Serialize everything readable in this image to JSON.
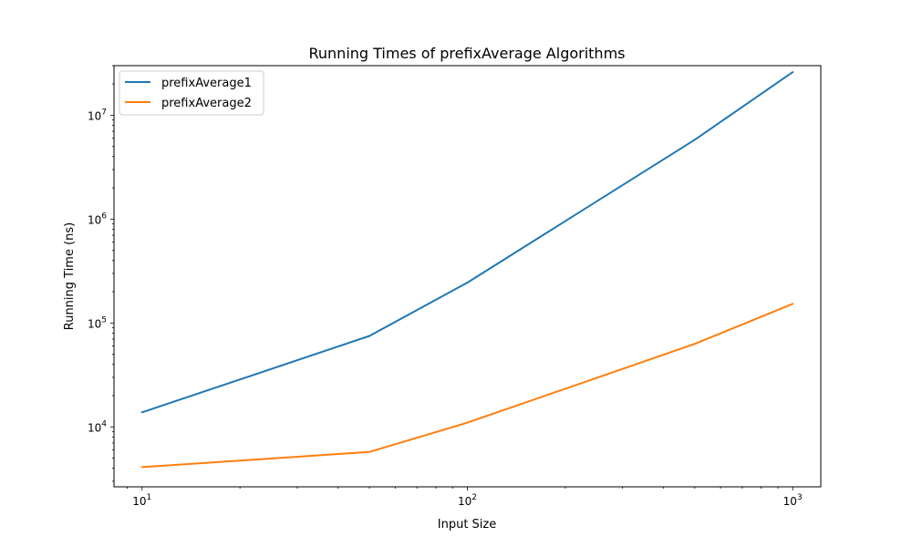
{
  "chart_data": {
    "type": "line",
    "title": "Running Times of prefixAverage Algorithms",
    "xlabel": "Input Size",
    "ylabel": "Running Time (ns)",
    "xscale": "log",
    "yscale": "log",
    "xlim": [
      8.2,
      1220
    ],
    "ylim": [
      2650,
      30000000
    ],
    "xticks": [
      {
        "value": 10,
        "base": "10",
        "exp": "1"
      },
      {
        "value": 100,
        "base": "10",
        "exp": "2"
      },
      {
        "value": 1000,
        "base": "10",
        "exp": "3"
      }
    ],
    "yticks": [
      {
        "value": 10000,
        "base": "10",
        "exp": "4"
      },
      {
        "value": 100000,
        "base": "10",
        "exp": "5"
      },
      {
        "value": 1000000,
        "base": "10",
        "exp": "6"
      },
      {
        "value": 10000000,
        "base": "10",
        "exp": "7"
      }
    ],
    "grid": false,
    "legend_position": "top-left",
    "x": [
      10,
      50,
      100,
      500,
      1000
    ],
    "series": [
      {
        "name": "prefixAverage1",
        "color": "#1f77b4",
        "values": [
          13800,
          75000,
          245000,
          5800000,
          26000000
        ]
      },
      {
        "name": "prefixAverage2",
        "color": "#ff7f0e",
        "values": [
          4100,
          5750,
          11000,
          63000,
          153000
        ]
      }
    ]
  }
}
